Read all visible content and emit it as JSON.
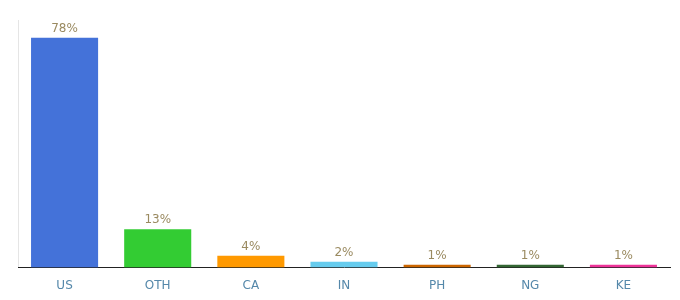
{
  "chart_data": {
    "type": "bar",
    "categories": [
      "US",
      "OTH",
      "CA",
      "IN",
      "PH",
      "NG",
      "KE"
    ],
    "values": [
      78,
      13,
      4,
      2,
      1,
      1,
      1
    ],
    "value_labels": [
      "78%",
      "13%",
      "4%",
      "2%",
      "1%",
      "1%",
      "1%"
    ],
    "colors": [
      "#4472d9",
      "#33cc33",
      "#ff9900",
      "#66ccee",
      "#cc6600",
      "#336633",
      "#ee3399"
    ],
    "ylim": [
      0,
      84
    ],
    "grid": false,
    "data_labels": true,
    "tick_labels": "x"
  }
}
